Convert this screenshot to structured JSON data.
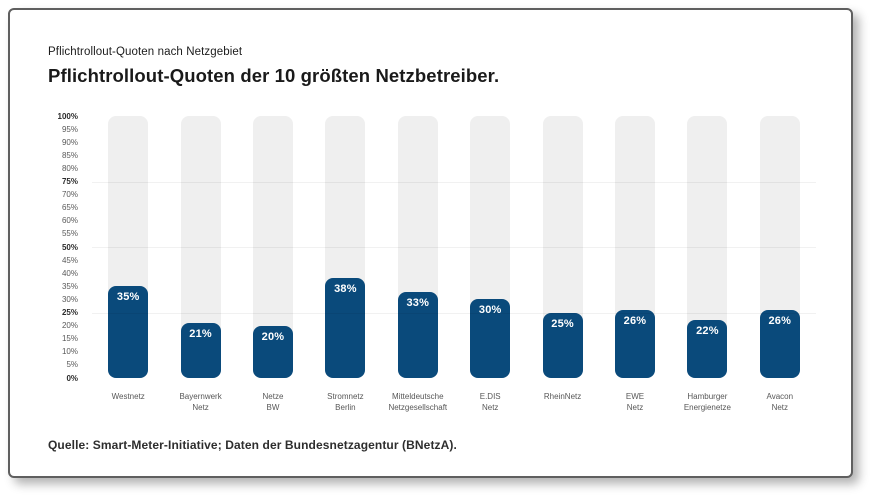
{
  "card": {
    "subtitle": "Pflichtrollout-Quoten nach Netzgebiet",
    "title": "Pflichtrollout-Quoten der 10 größten Netzbetreiber.",
    "source": "Quelle: Smart-Meter-Initiative; Daten der Bundesnetzagentur (BNetzA)."
  },
  "chart_data": {
    "type": "bar",
    "title": "Pflichtrollout-Quoten der 10 größten Netzbetreiber.",
    "subtitle": "Pflichtrollout-Quoten nach Netzgebiet",
    "categories": [
      "Westnetz",
      "Bayernwerk Netz",
      "Netze BW",
      "Stromnetz Berlin",
      "Mitteldeutsche Netzgesellschaft",
      "E.DIS Netz",
      "RheinNetz",
      "EWE Netz",
      "Hamburger Energienetze",
      "Avacon Netz"
    ],
    "category_lines": [
      [
        "Westnetz"
      ],
      [
        "Bayernwerk",
        "Netz"
      ],
      [
        "Netze",
        "BW"
      ],
      [
        "Stromnetz",
        "Berlin"
      ],
      [
        "Mitteldeutsche",
        "Netzgesellschaft"
      ],
      [
        "E.DIS",
        "Netz"
      ],
      [
        "RheinNetz"
      ],
      [
        "EWE",
        "Netz"
      ],
      [
        "Hamburger",
        "Energienetze"
      ],
      [
        "Avacon",
        "Netz"
      ]
    ],
    "values": [
      35,
      21,
      20,
      38,
      33,
      30,
      25,
      26,
      22,
      26
    ],
    "value_labels": [
      "35%",
      "21%",
      "20%",
      "38%",
      "33%",
      "30%",
      "25%",
      "26%",
      "22%",
      "26%"
    ],
    "xlabel": "",
    "ylabel": "",
    "ylim": [
      0,
      100
    ],
    "ytick_values": [
      100,
      95,
      90,
      85,
      80,
      75,
      70,
      65,
      60,
      55,
      50,
      45,
      40,
      35,
      30,
      25,
      20,
      15,
      10,
      5,
      0
    ],
    "ytick_labels": [
      "100%",
      "95%",
      "90%",
      "85%",
      "80%",
      "75%",
      "70%",
      "65%",
      "60%",
      "55%",
      "50%",
      "45%",
      "40%",
      "35%",
      "30%",
      "25%",
      "20%",
      "15%",
      "10%",
      "5%",
      "0%"
    ],
    "yticks_bold": [
      0,
      25,
      50,
      75,
      100
    ],
    "gridlines_at": [
      25,
      50,
      75
    ],
    "grid": "faint horizontal at 25% multiples",
    "legend_position": "none",
    "colors": {
      "bar": "#0a4a7b",
      "track": "#efefef",
      "value_label": "#ffffff"
    }
  }
}
